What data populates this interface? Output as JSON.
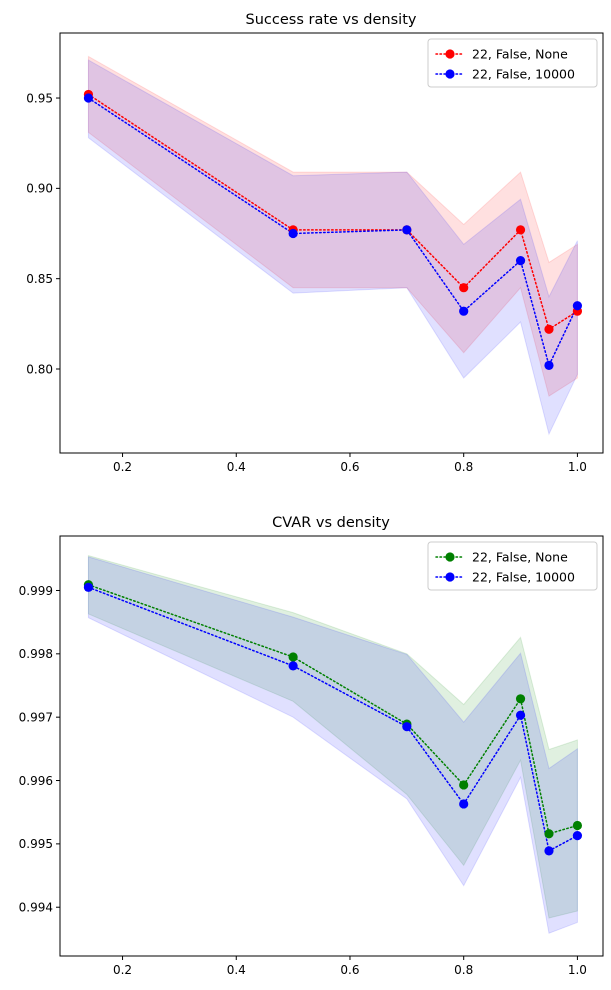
{
  "chart_data": [
    {
      "type": "line",
      "title": "Success rate vs density",
      "xlabel": "",
      "ylabel": "",
      "xlim": [
        0.09,
        1.045
      ],
      "ylim": [
        0.7535,
        0.986
      ],
      "xticks": [
        0.2,
        0.4,
        0.6,
        0.8,
        1.0
      ],
      "xtick_labels": [
        "0.2",
        "0.4",
        "0.6",
        "0.8",
        "1.0"
      ],
      "yticks": [
        0.8,
        0.85,
        0.9,
        0.95
      ],
      "ytick_labels": [
        "0.80",
        "0.85",
        "0.90",
        "0.95"
      ],
      "grid": false,
      "legend_position": "upper-right",
      "x": [
        0.14,
        0.5,
        0.7,
        0.8,
        0.9,
        0.95,
        1.0
      ],
      "series": [
        {
          "name": "22, False, None",
          "color": "#ff0000",
          "line_style": "dotted",
          "values": [
            0.952,
            0.877,
            0.877,
            0.845,
            0.877,
            0.822,
            0.832
          ],
          "band_upper": [
            0.973,
            0.909,
            0.909,
            0.88,
            0.909,
            0.859,
            0.869
          ],
          "band_lower": [
            0.931,
            0.845,
            0.845,
            0.809,
            0.845,
            0.785,
            0.795
          ]
        },
        {
          "name": "22, False, 10000",
          "color": "#0000ff",
          "line_style": "dotted",
          "values": [
            0.95,
            0.875,
            0.877,
            0.832,
            0.86,
            0.802,
            0.835
          ],
          "band_upper": [
            0.971,
            0.907,
            0.909,
            0.869,
            0.894,
            0.84,
            0.871
          ],
          "band_lower": [
            0.928,
            0.842,
            0.845,
            0.795,
            0.826,
            0.764,
            0.797
          ]
        }
      ]
    },
    {
      "type": "line",
      "title": "CVAR vs density",
      "xlabel": "",
      "ylabel": "",
      "xlim": [
        0.09,
        1.045
      ],
      "ylim": [
        0.99323,
        0.99986
      ],
      "xticks": [
        0.2,
        0.4,
        0.6,
        0.8,
        1.0
      ],
      "xtick_labels": [
        "0.2",
        "0.4",
        "0.6",
        "0.8",
        "1.0"
      ],
      "yticks": [
        0.994,
        0.995,
        0.996,
        0.997,
        0.998,
        0.999
      ],
      "ytick_labels": [
        "0.994",
        "0.995",
        "0.996",
        "0.997",
        "0.998",
        "0.999"
      ],
      "grid": false,
      "legend_position": "upper-right",
      "x": [
        0.14,
        0.5,
        0.7,
        0.8,
        0.9,
        0.95,
        1.0
      ],
      "series": [
        {
          "name": "22, False, None",
          "color": "#008000",
          "line_style": "dotted",
          "values": [
            0.99909,
            0.99795,
            0.99689,
            0.99593,
            0.99729,
            0.99516,
            0.99529
          ],
          "band_upper": [
            0.99955,
            0.99865,
            0.998,
            0.9972,
            0.99826,
            0.99649,
            0.99664
          ],
          "band_lower": [
            0.99863,
            0.99725,
            0.99578,
            0.99466,
            0.99632,
            0.99383,
            0.99394
          ]
        },
        {
          "name": "22, False, 10000",
          "color": "#0000ff",
          "line_style": "dotted",
          "values": [
            0.99905,
            0.99781,
            0.99685,
            0.99563,
            0.99703,
            0.99489,
            0.99513
          ],
          "band_upper": [
            0.99953,
            0.99858,
            0.99799,
            0.99692,
            0.99801,
            0.99619,
            0.9965
          ],
          "band_lower": [
            0.99857,
            0.997,
            0.99571,
            0.99434,
            0.99605,
            0.99359,
            0.99376
          ]
        }
      ]
    }
  ]
}
